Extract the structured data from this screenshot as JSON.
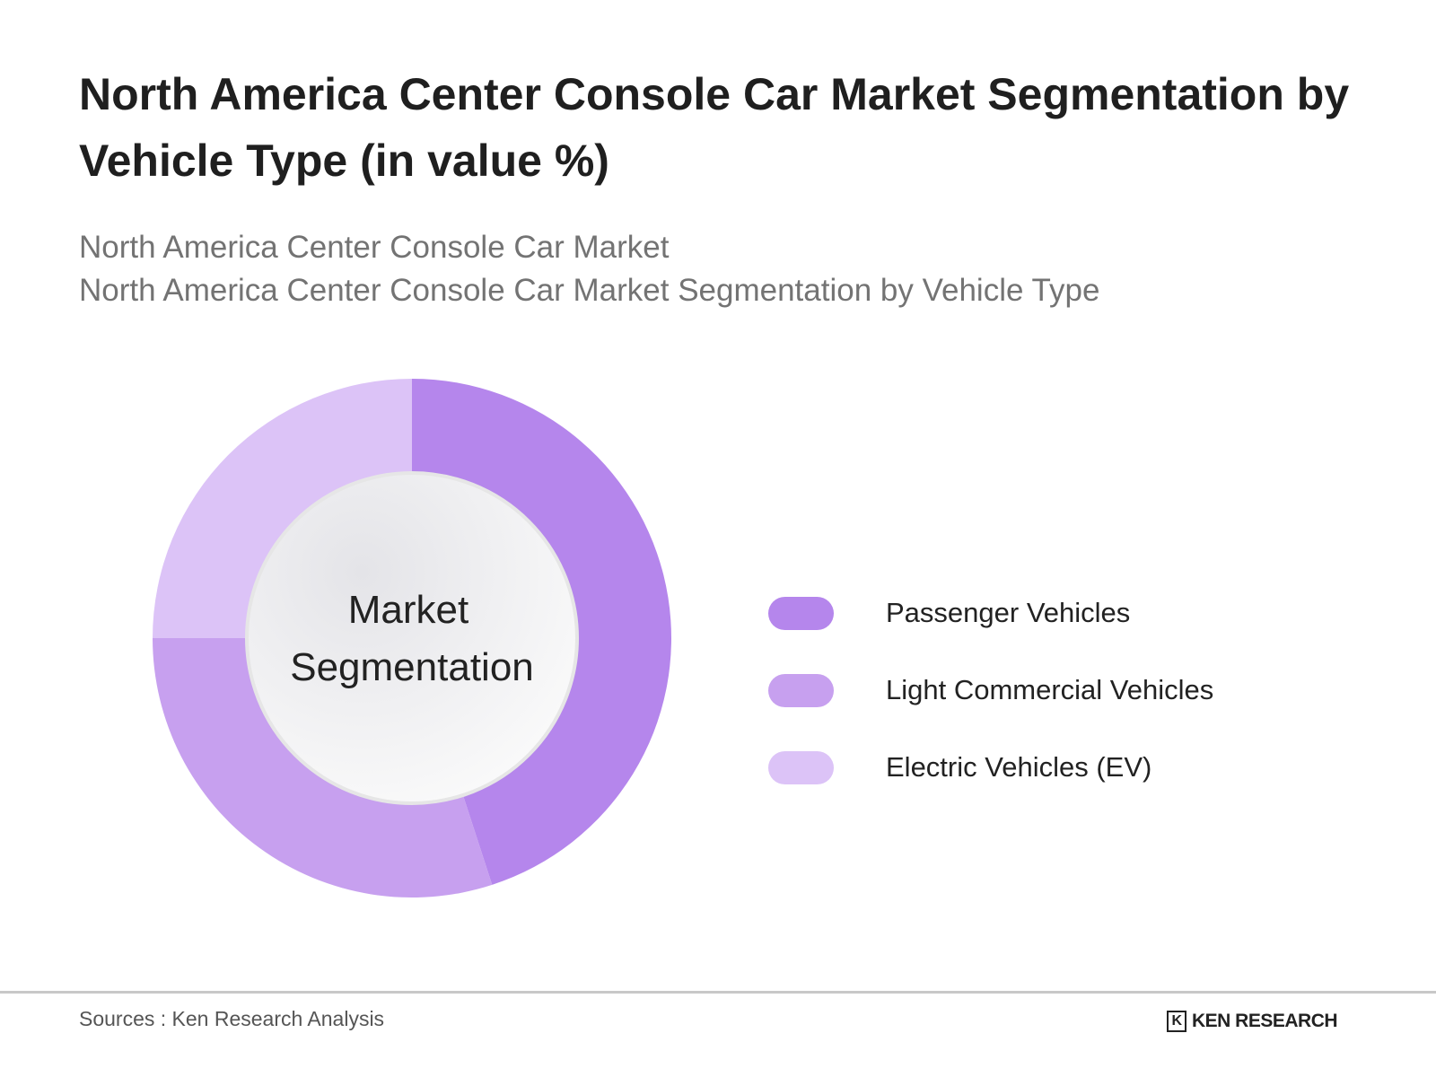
{
  "title": "North America Center Console Car Market Segmentation by Vehicle Type (in value %)",
  "subtitle_lines": [
    "North America Center Console Car Market",
    "North America Center Console Car Market Segmentation by Vehicle Type"
  ],
  "chart_data": {
    "type": "pie",
    "donut": true,
    "center_label_lines": [
      "Market",
      "Segmentation"
    ],
    "categories": [
      "Passenger Vehicles",
      "Light Commercial Vehicles",
      "Electric Vehicles (EV)"
    ],
    "values": [
      45,
      30,
      25
    ],
    "colors": [
      "#b586ec",
      "#c7a0ef",
      "#dcc3f7"
    ],
    "legend_position": "right"
  },
  "footer": {
    "source": "Sources : Ken Research Analysis",
    "logo_text": "KEN RESEARCH",
    "logo_mark": "K"
  }
}
